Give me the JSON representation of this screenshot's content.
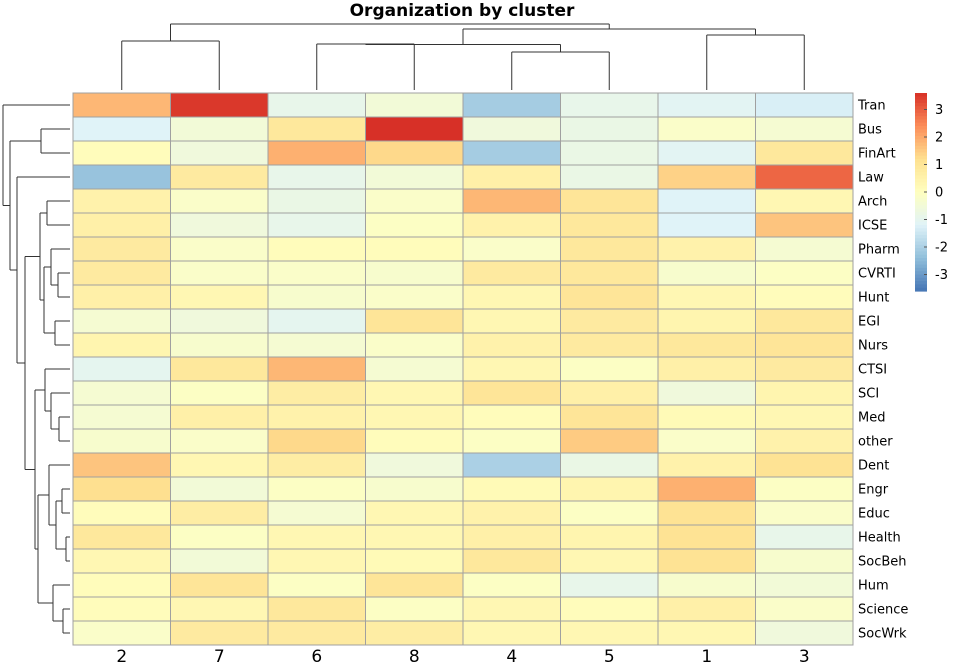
{
  "chart_data": {
    "type": "heatmap",
    "title": "Organization by cluster",
    "columns": [
      "2",
      "7",
      "6",
      "8",
      "4",
      "5",
      "1",
      "3"
    ],
    "rows": [
      "Tran",
      "Bus",
      "FinArt",
      "Law",
      "Arch",
      "ICSE",
      "Pharm",
      "CVRTI",
      "Hunt",
      "EGI",
      "Nurs",
      "CTSI",
      "SCI",
      "Med",
      "other",
      "Dent",
      "Engr",
      "Educ",
      "Health",
      "SocBeh",
      "Hum",
      "Science",
      "SocWrk"
    ],
    "values": [
      [
        1.8,
        3.5,
        -0.9,
        -0.5,
        -2.1,
        -0.9,
        -1.1,
        -1.3
      ],
      [
        -1.2,
        -0.5,
        0.9,
        3.6,
        -0.6,
        -0.8,
        -0.2,
        -0.4
      ],
      [
        0.1,
        -0.6,
        1.9,
        1.3,
        -2.1,
        -0.8,
        -1.1,
        0.9
      ],
      [
        -2.3,
        0.8,
        -0.9,
        -0.5,
        0.6,
        -0.8,
        1.4,
        2.9
      ],
      [
        0.5,
        -0.2,
        -0.8,
        -0.2,
        1.8,
        1.0,
        -1.2,
        0.3
      ],
      [
        0.6,
        -0.6,
        -0.9,
        -0.1,
        0.5,
        0.9,
        -1.2,
        1.6
      ],
      [
        0.8,
        -0.2,
        0.1,
        0.1,
        -0.2,
        0.9,
        0.5,
        -0.4
      ],
      [
        0.8,
        -0.2,
        -0.2,
        -0.3,
        0.8,
        0.9,
        -0.3,
        -0.1
      ],
      [
        0.6,
        0.3,
        -0.3,
        -0.2,
        0.3,
        1.0,
        0.3,
        0.1
      ],
      [
        -0.4,
        -0.6,
        -1.0,
        1.0,
        0.3,
        0.8,
        0.4,
        0.9
      ],
      [
        0.4,
        -0.3,
        -0.4,
        -0.2,
        0.5,
        0.8,
        0.9,
        1.0
      ],
      [
        -1.0,
        0.9,
        1.8,
        -0.4,
        0.3,
        -0.1,
        0.6,
        0.8
      ],
      [
        -0.4,
        -0.1,
        0.7,
        0.3,
        1.0,
        0.6,
        -0.6,
        0.4
      ],
      [
        -0.4,
        0.6,
        0.5,
        0.3,
        0.1,
        1.0,
        0.2,
        0.3
      ],
      [
        -0.3,
        -0.2,
        1.3,
        0.1,
        -0.1,
        1.5,
        -0.2,
        0.5
      ],
      [
        1.6,
        0.3,
        0.7,
        -0.6,
        -2.0,
        -0.8,
        0.5,
        1.1
      ],
      [
        1.2,
        -0.5,
        -0.1,
        -0.3,
        0.2,
        0.4,
        1.9,
        -0.1
      ],
      [
        0.1,
        0.7,
        -0.4,
        0.3,
        0.5,
        -0.1,
        1.1,
        -0.2
      ],
      [
        0.9,
        -0.1,
        0.3,
        0.3,
        0.6,
        0.4,
        1.1,
        -0.9
      ],
      [
        0.3,
        -0.5,
        0.3,
        0.2,
        0.9,
        0.3,
        1.1,
        -0.3
      ],
      [
        0.1,
        1.0,
        -0.1,
        1.0,
        -0.1,
        -0.9,
        -0.3,
        -0.5
      ],
      [
        0.1,
        0.3,
        0.9,
        -0.1,
        0.3,
        0.1,
        0.6,
        -0.2
      ],
      [
        -0.2,
        0.8,
        0.8,
        0.7,
        0.3,
        0.3,
        0.3,
        -0.6
      ]
    ],
    "color_scale": {
      "min": -3.6,
      "max": 3.6,
      "colors": [
        "#4575b4",
        "#91bfdb",
        "#e0f3f8",
        "#ffffbf",
        "#fee090",
        "#fc8d59",
        "#d73027"
      ]
    },
    "colorbar_ticks": [
      "3",
      "2",
      "1",
      "0",
      "-1",
      "-2",
      "-3"
    ],
    "grid": true
  }
}
